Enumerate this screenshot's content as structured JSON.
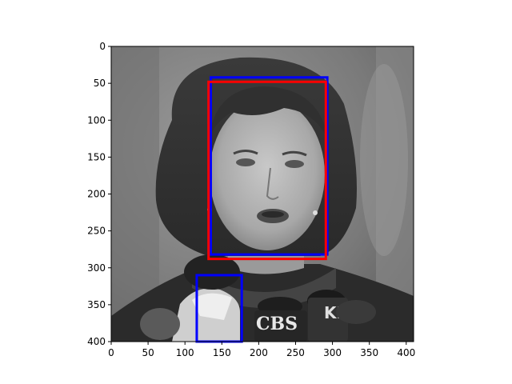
{
  "figure": {
    "image_description": "grayscale photo of a woman with dark shoulder-length hair speaking into news microphones",
    "image_extent": {
      "x": [
        0,
        410
      ],
      "y": [
        0,
        400
      ]
    },
    "y_inverted": true,
    "x_ticks": [
      0,
      50,
      100,
      150,
      200,
      250,
      300,
      350,
      400
    ],
    "y_ticks": [
      0,
      50,
      100,
      150,
      200,
      250,
      300,
      350,
      400
    ],
    "mic_labels": [
      "CBS",
      "KF"
    ],
    "boxes": [
      {
        "name": "blue-box-face",
        "color": "#0000ff",
        "x0": 135,
        "y0": 42,
        "x1": 293,
        "y1": 282
      },
      {
        "name": "red-box-face",
        "color": "#ff0000",
        "x0": 132,
        "y0": 48,
        "x1": 291,
        "y1": 288
      },
      {
        "name": "blue-box-microphone",
        "color": "#0000ff",
        "x0": 116,
        "y0": 310,
        "x1": 177,
        "y1": 400
      }
    ]
  }
}
